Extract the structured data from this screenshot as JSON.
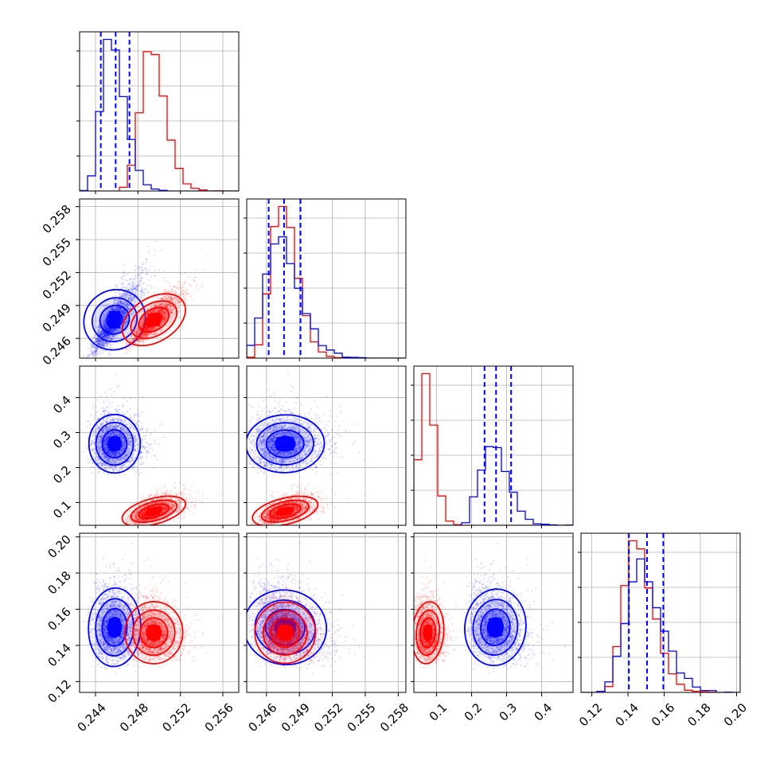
{
  "chart_data": {
    "type": "corner",
    "grid": true,
    "params": [
      {
        "axis_range": [
          0.2425,
          0.2575
        ],
        "ticks": [
          0.244,
          0.248,
          0.252,
          0.256
        ],
        "tick_labels": [
          "0.244",
          "0.248",
          "0.252",
          "0.256"
        ]
      },
      {
        "axis_range": [
          0.2442,
          0.2587
        ],
        "ticks": [
          0.246,
          0.249,
          0.252,
          0.255,
          0.258
        ],
        "tick_labels": [
          "0.246",
          "0.249",
          "0.252",
          "0.255",
          "0.258"
        ]
      },
      {
        "axis_range": [
          0.035,
          0.49
        ],
        "ticks": [
          0.1,
          0.2,
          0.3,
          0.4
        ],
        "tick_labels": [
          "0.1",
          "0.2",
          "0.3",
          "0.4"
        ]
      },
      {
        "axis_range": [
          0.114,
          0.202
        ],
        "ticks": [
          0.12,
          0.14,
          0.16,
          0.18,
          0.2
        ],
        "tick_labels": [
          "0.12",
          "0.14",
          "0.16",
          "0.18",
          "0.20"
        ]
      }
    ],
    "series": [
      {
        "color": "#0000ff",
        "means": [
          0.2458,
          0.2477,
          0.268,
          0.15
        ],
        "sds": [
          0.0011,
          0.0016,
          0.038,
          0.01
        ],
        "correlations": [
          [
            0,
            1,
            0.85
          ],
          [
            0,
            2,
            0.0
          ],
          [
            0,
            3,
            -0.05
          ],
          [
            1,
            2,
            0.05
          ],
          [
            1,
            3,
            -0.25
          ],
          [
            2,
            3,
            -0.15
          ]
        ],
        "quantile_lines": [
          [
            0.2445,
            0.2459,
            0.2472
          ],
          [
            0.2462,
            0.2476,
            0.2491
          ],
          [
            0.237,
            0.27,
            0.313
          ],
          [
            0.1405,
            0.1505,
            0.1595
          ]
        ]
      },
      {
        "color": "#ff0000",
        "means": [
          0.2495,
          0.2477,
          0.075,
          0.147
        ],
        "sds": [
          0.0012,
          0.0012,
          0.02,
          0.008
        ],
        "correlations": [
          [
            0,
            1,
            0.85
          ],
          [
            0,
            2,
            0.6
          ],
          [
            0,
            3,
            -0.1
          ],
          [
            1,
            2,
            0.55
          ],
          [
            1,
            3,
            -0.15
          ],
          [
            2,
            3,
            -0.1
          ]
        ],
        "quantile_lines": []
      }
    ]
  }
}
